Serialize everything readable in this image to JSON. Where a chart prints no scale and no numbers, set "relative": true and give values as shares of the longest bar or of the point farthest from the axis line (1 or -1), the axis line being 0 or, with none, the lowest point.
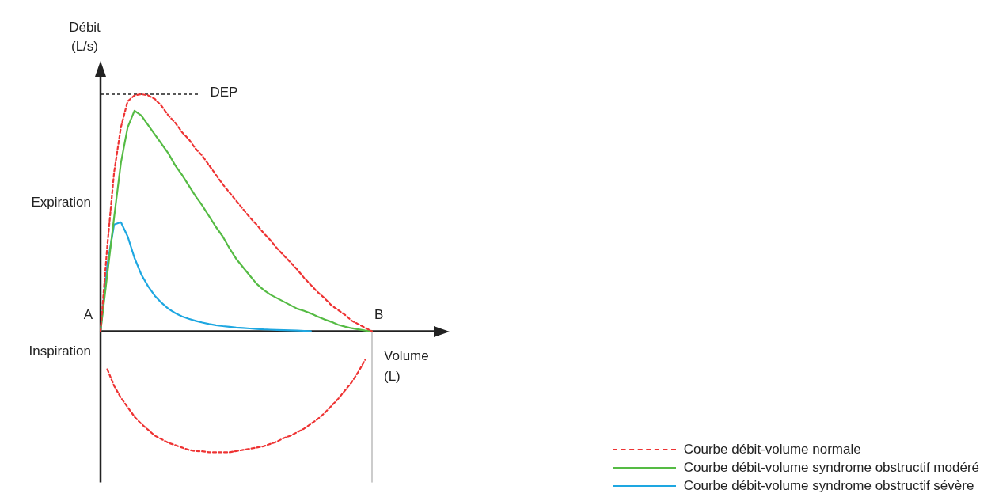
{
  "chart_data": {
    "type": "line",
    "relative": true,
    "ylabel": "Débit (L/s)",
    "xlabel": "Volume (L)",
    "legend": "bottom right",
    "marker": "none",
    "categories": [
      null,
      null,
      null,
      null,
      null,
      null,
      null,
      null,
      null,
      null,
      null,
      null,
      null,
      null,
      null,
      null,
      null,
      null,
      null,
      null,
      null,
      null,
      null,
      null,
      null,
      null,
      null,
      null,
      null,
      null,
      null,
      null,
      null,
      null,
      null,
      null,
      null,
      null,
      null,
      null,
      null
    ],
    "series": [
      {
        "name": "Courbe débit-volume normale",
        "color": "#ee3333",
        "line_style": "dashed",
        "values": [
          0,
          0.36,
          0.67,
          0.86,
          0.97,
          0.995,
          1,
          0.995,
          0.98,
          0.95,
          0.91,
          0.88,
          0.84,
          0.81,
          0.77,
          0.74,
          0.7,
          0.66,
          0.62,
          0.585,
          0.55,
          0.515,
          0.48,
          0.45,
          0.415,
          0.385,
          0.35,
          0.32,
          0.29,
          0.26,
          0.225,
          0.195,
          0.165,
          0.14,
          0.11,
          0.09,
          0.07,
          0.045,
          0.03,
          0.015,
          0
        ]
      },
      {
        "color": "#ee3333",
        "line_style": "dashed",
        "values": [
          null,
          -0.16,
          -0.23,
          -0.28,
          -0.32,
          -0.36,
          -0.39,
          -0.415,
          -0.44,
          -0.455,
          -0.47,
          -0.48,
          -0.49,
          -0.5,
          -0.505,
          -0.506,
          -0.51,
          -0.51,
          -0.51,
          -0.51,
          -0.505,
          -0.5,
          -0.495,
          -0.49,
          -0.485,
          -0.475,
          -0.465,
          -0.45,
          -0.44,
          -0.425,
          -0.41,
          -0.39,
          -0.37,
          -0.345,
          -0.315,
          -0.285,
          -0.25,
          -0.215,
          -0.17,
          -0.12,
          null
        ]
      },
      {
        "name": "Courbe débit-volume syndrome obstructif modéré",
        "color": "#55bb44",
        "line_style": "solid",
        "values": [
          0,
          0.24,
          0.48,
          0.71,
          0.86,
          0.93,
          0.91,
          0.87,
          0.83,
          0.79,
          0.75,
          0.7,
          0.66,
          0.615,
          0.57,
          0.53,
          0.485,
          0.44,
          0.4,
          0.35,
          0.305,
          0.27,
          0.235,
          0.2,
          0.175,
          0.155,
          0.14,
          0.125,
          0.11,
          0.095,
          0.086,
          0.075,
          0.062,
          0.05,
          0.04,
          0.028,
          0.02,
          0.013,
          0.008,
          0.003,
          0
        ]
      },
      {
        "name": "Courbe débit-volume syndrome obstructif sévère",
        "color": "#1ea7e1",
        "line_style": "solid",
        "values": [
          0,
          0.28,
          0.45,
          0.46,
          0.4,
          0.31,
          0.24,
          0.19,
          0.15,
          0.12,
          0.095,
          0.077,
          0.063,
          0.053,
          0.044,
          0.037,
          0.031,
          0.026,
          0.022,
          0.019,
          0.016,
          0.014,
          0.012,
          0.01,
          0.008,
          0.007,
          0.006,
          0.005,
          0.004,
          0.003,
          0.002,
          0.001,
          null,
          null,
          null,
          null,
          null,
          null,
          null,
          null,
          null
        ]
      }
    ],
    "ref_lines": [
      {
        "axis": "y",
        "value": 1,
        "label": "DEP",
        "line_style": "dashed"
      }
    ],
    "annotations": [
      "A",
      "B",
      "Expiration",
      "Inspiration"
    ]
  }
}
